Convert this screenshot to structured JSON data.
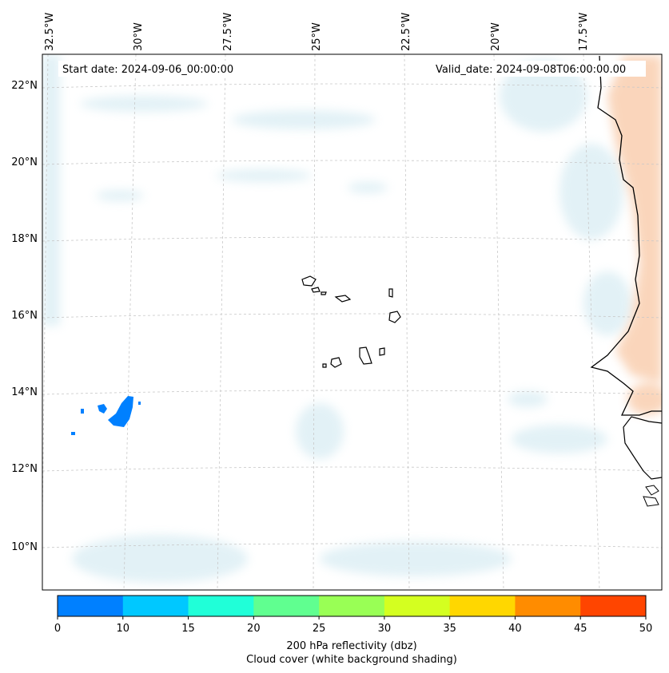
{
  "map": {
    "start_label": "Start date: 2024-09-06_00:00:00",
    "valid_label": "Valid_date: 2024-09-08T06:00:00.00",
    "lon_labels": [
      "32.5°W",
      "30°W",
      "27.5°W",
      "25°W",
      "22.5°W",
      "20°W",
      "17.5°W"
    ],
    "lat_labels": [
      "22°N",
      "20°N",
      "18°N",
      "16°N",
      "14°N",
      "12°N",
      "10°N"
    ],
    "cloud_color": "#add8e6",
    "warm_shading_color": "#f4a46a",
    "reflectivity_color": "#0080ff"
  },
  "colorbar": {
    "ticks": [
      "0",
      "10",
      "15",
      "20",
      "25",
      "30",
      "35",
      "40",
      "45",
      "50"
    ],
    "colors": [
      "#0080ff",
      "#00c8ff",
      "#20ffd8",
      "#60ff90",
      "#99ff55",
      "#d4ff20",
      "#ffd700",
      "#ff8c00",
      "#ff4500"
    ],
    "label_line1": "200 hPa reflectivity (dbz)",
    "label_line2": "Cloud cover (white background shading)"
  }
}
